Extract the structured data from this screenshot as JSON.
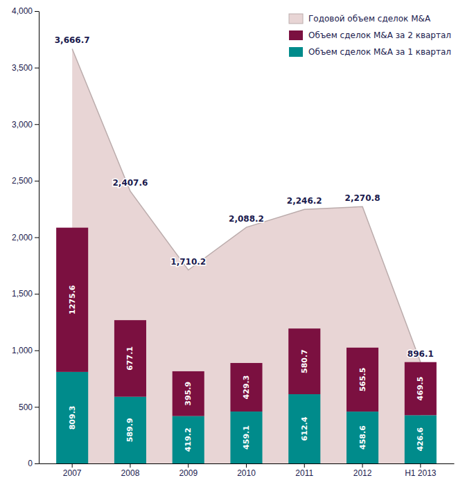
{
  "chart_data": {
    "type": "bar",
    "stacked": true,
    "data_labels": true,
    "grid": false,
    "legend": "upper right",
    "categories": [
      "2007",
      "2008",
      "2009",
      "2010",
      "2011",
      "2012",
      "H1 2013"
    ],
    "series": [
      {
        "name": "Годовой объем сделок M&A",
        "type": "area",
        "color": "#E8D5D5",
        "values": [
          3666.7,
          2407.6,
          1710.2,
          2088.2,
          2246.2,
          2270.8,
          896.1
        ],
        "value_labels": [
          "3,666.7",
          "2,407.6",
          "1,710.2",
          "2,088.2",
          "2,246.2",
          "2,270.8",
          "896.1"
        ]
      },
      {
        "name": "Объем сделок M&A за 1 квартал",
        "type": "bar",
        "color": "#008B8B",
        "values": [
          809.3,
          589.9,
          419.2,
          459.1,
          612.4,
          458.6,
          426.6
        ]
      },
      {
        "name": "Объем сделок M&A за 2 квартал",
        "type": "bar",
        "color": "#7B1040",
        "values": [
          1275.6,
          677.1,
          395.9,
          429.3,
          580.7,
          565.5,
          469.5
        ]
      }
    ],
    "ylim": [
      0,
      4000
    ],
    "yticks": [
      0,
      500,
      {
        "value": 1000,
        "label": "1,000"
      },
      {
        "value": 1500,
        "label": "1,500"
      },
      {
        "value": 2000,
        "label": "2,000"
      },
      {
        "value": 2500,
        "label": "2,500"
      },
      {
        "value": 3000,
        "label": "3,000"
      },
      {
        "value": 3500,
        "label": "3,500"
      },
      {
        "value": 4000,
        "label": "4,000"
      }
    ]
  }
}
